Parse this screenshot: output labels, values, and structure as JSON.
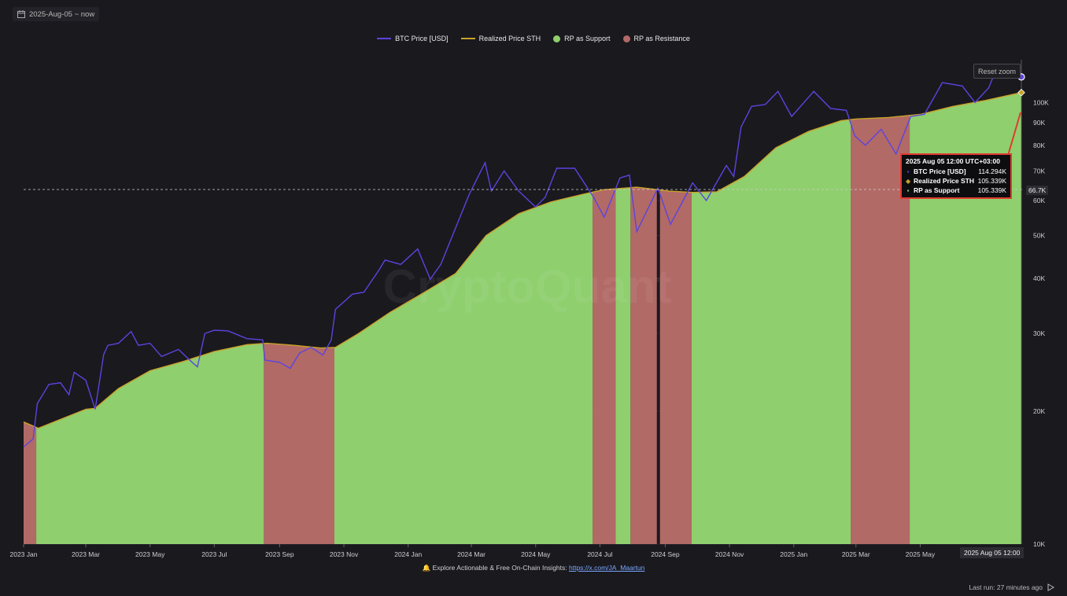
{
  "header": {
    "date_range": "2025-Aug-05 ~ now"
  },
  "legend": [
    {
      "label": "BTC Price [USD]",
      "color": "#5b44e0",
      "kind": "line"
    },
    {
      "label": "Realized Price STH",
      "color": "#c9a22a",
      "kind": "line"
    },
    {
      "label": "RP as Support",
      "color": "#8fcf6e",
      "kind": "dot"
    },
    {
      "label": "RP as Resistance",
      "color": "#b26a66",
      "kind": "dot"
    }
  ],
  "controls": {
    "reset_zoom": "Reset zoom"
  },
  "watermark": "CryptoQuant",
  "tooltip": {
    "title": "2025 Aug 05 12:00 UTC+03:00",
    "rows": [
      {
        "label": "BTC Price [USD]",
        "value": "114.294K",
        "marker": "▪"
      },
      {
        "label": "Realized Price STH",
        "value": "105.339K",
        "marker": "◆"
      },
      {
        "label": "RP as Support",
        "value": "105.339K",
        "marker": "▪"
      }
    ]
  },
  "crosshair_value": "66.7K",
  "crosshair_date": "2025 Aug 05 12:00",
  "footer": {
    "icon": "bell-icon",
    "text": "Explore Actionable & Free On-Chain Insights: ",
    "link": "https://x.com/JA_Maartun"
  },
  "last_run": "Last run: 27 minutes ago",
  "chart_data": {
    "type": "line",
    "y_scale": "log",
    "ylim": [
      10000,
      125000
    ],
    "y_ticks": [
      {
        "label": "10K",
        "value": 10000
      },
      {
        "label": "20K",
        "value": 20000
      },
      {
        "label": "30K",
        "value": 30000
      },
      {
        "label": "40K",
        "value": 40000
      },
      {
        "label": "50K",
        "value": 50000
      },
      {
        "label": "60K",
        "value": 60000
      },
      {
        "label": "70K",
        "value": 70000
      },
      {
        "label": "80K",
        "value": 80000
      },
      {
        "label": "90K",
        "value": 90000
      },
      {
        "label": "100K",
        "value": 100000
      }
    ],
    "x_ticks": [
      "2023 Jan",
      "2023 Mar",
      "2023 May",
      "2023 Jul",
      "2023 Sep",
      "2023 Nov",
      "2024 Jan",
      "2024 Mar",
      "2024 May",
      "2024 Jul",
      "2024 Sep",
      "2024 Nov",
      "2025 Jan",
      "2025 Mar",
      "2025 May"
    ],
    "x_range": [
      "2023-01-01",
      "2025-08-05"
    ],
    "series": [
      {
        "name": "BTC Price [USD]",
        "color": "#5b44e0",
        "points": [
          [
            "2023-01-01",
            16600
          ],
          [
            "2023-01-10",
            17300
          ],
          [
            "2023-01-14",
            20800
          ],
          [
            "2023-01-25",
            23000
          ],
          [
            "2023-02-05",
            23200
          ],
          [
            "2023-02-13",
            21800
          ],
          [
            "2023-02-18",
            24500
          ],
          [
            "2023-03-01",
            23500
          ],
          [
            "2023-03-10",
            20200
          ],
          [
            "2023-03-18",
            26900
          ],
          [
            "2023-03-22",
            28200
          ],
          [
            "2023-04-01",
            28500
          ],
          [
            "2023-04-13",
            30300
          ],
          [
            "2023-04-20",
            28200
          ],
          [
            "2023-05-01",
            28500
          ],
          [
            "2023-05-12",
            26600
          ],
          [
            "2023-05-28",
            27600
          ],
          [
            "2023-06-10",
            25800
          ],
          [
            "2023-06-15",
            25200
          ],
          [
            "2023-06-22",
            30000
          ],
          [
            "2023-07-01",
            30500
          ],
          [
            "2023-07-14",
            30400
          ],
          [
            "2023-08-01",
            29200
          ],
          [
            "2023-08-16",
            29000
          ],
          [
            "2023-08-18",
            26100
          ],
          [
            "2023-09-01",
            25800
          ],
          [
            "2023-09-11",
            25000
          ],
          [
            "2023-09-20",
            27100
          ],
          [
            "2023-10-01",
            27900
          ],
          [
            "2023-10-12",
            26800
          ],
          [
            "2023-10-20",
            29000
          ],
          [
            "2023-10-24",
            34000
          ],
          [
            "2023-11-09",
            36800
          ],
          [
            "2023-11-20",
            37200
          ],
          [
            "2023-12-05",
            42000
          ],
          [
            "2023-12-10",
            44000
          ],
          [
            "2023-12-25",
            43000
          ],
          [
            "2024-01-10",
            46600
          ],
          [
            "2024-01-22",
            39800
          ],
          [
            "2024-02-01",
            43000
          ],
          [
            "2024-02-15",
            52000
          ],
          [
            "2024-02-28",
            62000
          ],
          [
            "2024-03-14",
            73100
          ],
          [
            "2024-03-20",
            63000
          ],
          [
            "2024-04-01",
            70000
          ],
          [
            "2024-04-15",
            63000
          ],
          [
            "2024-05-01",
            58000
          ],
          [
            "2024-05-10",
            61000
          ],
          [
            "2024-05-21",
            71000
          ],
          [
            "2024-06-07",
            71000
          ],
          [
            "2024-06-25",
            61000
          ],
          [
            "2024-07-05",
            55000
          ],
          [
            "2024-07-20",
            67500
          ],
          [
            "2024-07-29",
            68500
          ],
          [
            "2024-08-05",
            51000
          ],
          [
            "2024-08-25",
            64000
          ],
          [
            "2024-09-06",
            53000
          ],
          [
            "2024-09-18",
            60000
          ],
          [
            "2024-09-27",
            65800
          ],
          [
            "2024-10-10",
            60000
          ],
          [
            "2024-10-29",
            72000
          ],
          [
            "2024-11-05",
            68000
          ],
          [
            "2024-11-12",
            88000
          ],
          [
            "2024-11-22",
            98000
          ],
          [
            "2024-12-05",
            99000
          ],
          [
            "2024-12-17",
            106000
          ],
          [
            "2024-12-30",
            93000
          ],
          [
            "2025-01-20",
            106000
          ],
          [
            "2025-02-05",
            97000
          ],
          [
            "2025-02-20",
            96000
          ],
          [
            "2025-02-28",
            84000
          ],
          [
            "2025-03-10",
            80000
          ],
          [
            "2025-03-25",
            87000
          ],
          [
            "2025-04-08",
            76500
          ],
          [
            "2025-04-22",
            93000
          ],
          [
            "2025-05-05",
            94000
          ],
          [
            "2025-05-22",
            111000
          ],
          [
            "2025-06-10",
            109000
          ],
          [
            "2025-06-22",
            100000
          ],
          [
            "2025-07-05",
            108000
          ],
          [
            "2025-07-14",
            122000
          ],
          [
            "2025-07-22",
            119000
          ],
          [
            "2025-08-05",
            114294
          ]
        ]
      },
      {
        "name": "Realized Price STH",
        "color": "#c9a22a",
        "points": [
          [
            "2023-01-01",
            18900
          ],
          [
            "2023-01-15",
            18300
          ],
          [
            "2023-02-01",
            19000
          ],
          [
            "2023-03-01",
            20200
          ],
          [
            "2023-03-10",
            20300
          ],
          [
            "2023-04-01",
            22500
          ],
          [
            "2023-05-01",
            24700
          ],
          [
            "2023-06-01",
            25900
          ],
          [
            "2023-07-01",
            27300
          ],
          [
            "2023-08-01",
            28300
          ],
          [
            "2023-08-20",
            28500
          ],
          [
            "2023-09-15",
            28200
          ],
          [
            "2023-10-10",
            27800
          ],
          [
            "2023-10-24",
            27900
          ],
          [
            "2023-11-15",
            30000
          ],
          [
            "2023-12-15",
            33500
          ],
          [
            "2024-01-15",
            37000
          ],
          [
            "2024-02-15",
            41000
          ],
          [
            "2024-03-15",
            50000
          ],
          [
            "2024-04-15",
            56000
          ],
          [
            "2024-05-15",
            59500
          ],
          [
            "2024-06-15",
            62000
          ],
          [
            "2024-07-05",
            63500
          ],
          [
            "2024-08-05",
            64300
          ],
          [
            "2024-09-05",
            63000
          ],
          [
            "2024-09-27",
            62600
          ],
          [
            "2024-10-20",
            62800
          ],
          [
            "2024-11-15",
            68000
          ],
          [
            "2024-12-15",
            79000
          ],
          [
            "2025-01-15",
            86000
          ],
          [
            "2025-02-15",
            91000
          ],
          [
            "2025-03-01",
            91800
          ],
          [
            "2025-04-01",
            92500
          ],
          [
            "2025-05-01",
            94000
          ],
          [
            "2025-06-01",
            98000
          ],
          [
            "2025-07-01",
            101000
          ],
          [
            "2025-08-05",
            105339
          ]
        ]
      }
    ],
    "regimes": [
      {
        "name": "RP as Resistance",
        "color": "#b26a66",
        "ranges": [
          [
            "2023-01-01",
            "2023-01-13"
          ],
          [
            "2023-06-15",
            "2023-06-16"
          ],
          [
            "2023-08-17",
            "2023-10-23"
          ],
          [
            "2024-04-30",
            "2024-05-02"
          ],
          [
            "2024-06-24",
            "2024-07-16"
          ],
          [
            "2024-07-30",
            "2024-08-24"
          ],
          [
            "2024-08-27",
            "2024-09-26"
          ],
          [
            "2024-10-01",
            "2024-10-13"
          ],
          [
            "2025-02-24",
            "2025-04-21"
          ]
        ]
      },
      {
        "name": "RP as Support",
        "color": "#8fcf6e",
        "ranges": [
          [
            "2023-01-13",
            "2023-08-17"
          ],
          [
            "2023-10-23",
            "2024-06-24"
          ],
          [
            "2024-07-16",
            "2024-07-30"
          ],
          [
            "2024-09-26",
            "2025-02-24"
          ],
          [
            "2025-04-21",
            "2025-08-05"
          ]
        ]
      }
    ]
  }
}
